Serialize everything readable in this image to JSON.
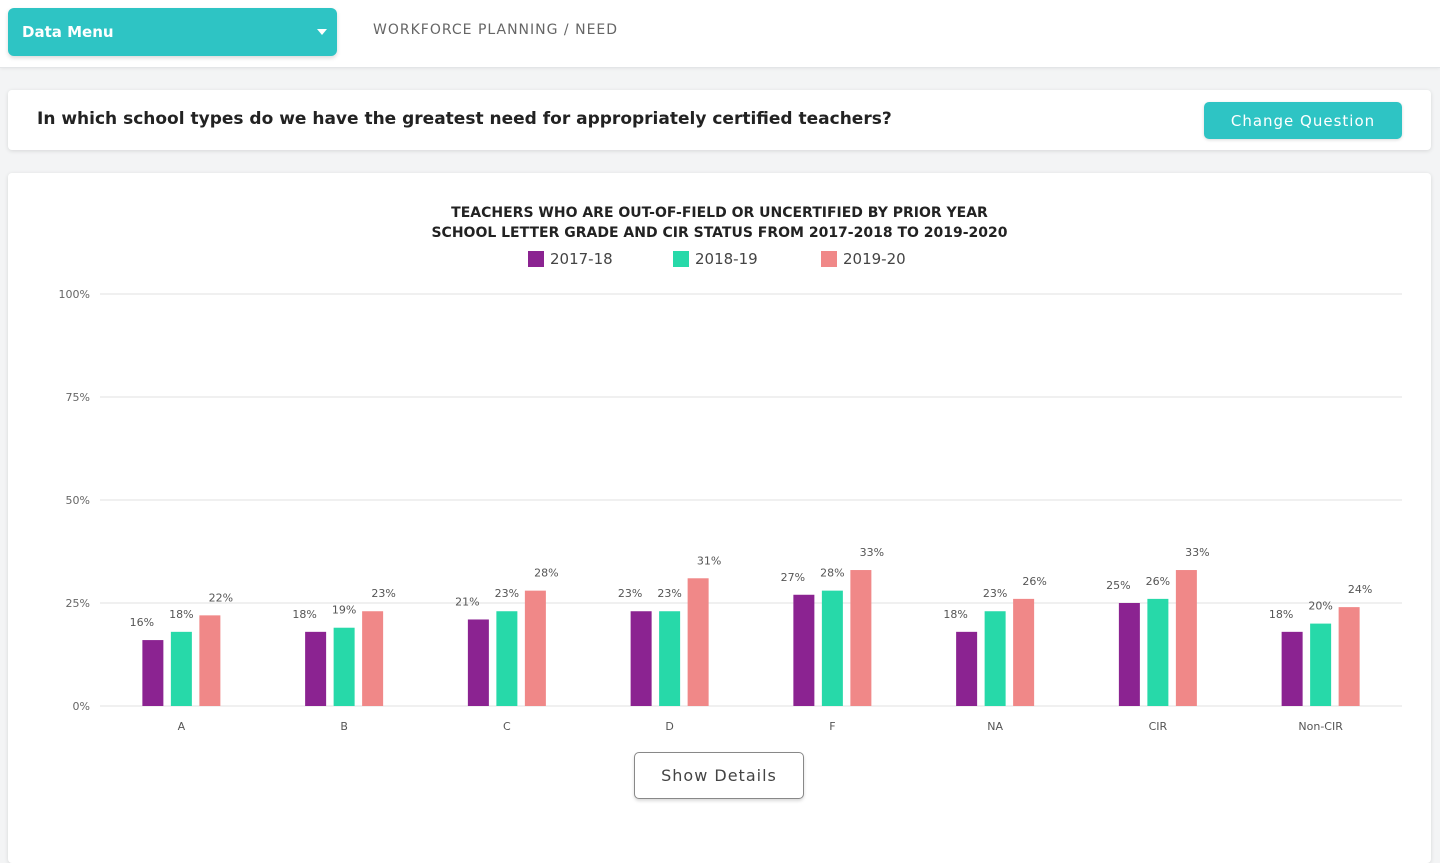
{
  "header": {
    "data_menu_label": "Data Menu",
    "breadcrumb": "WORKFORCE PLANNING / NEED"
  },
  "question": {
    "text": "In which school types do we have the greatest need for appropriately certified teachers?",
    "change_button_label": "Change Question"
  },
  "show_details_label": "Show Details",
  "chart_data": {
    "type": "bar",
    "title": "TEACHERS WHO ARE OUT-OF-FIELD OR UNCERTIFIED BY PRIOR YEAR",
    "subtitle": "SCHOOL LETTER GRADE AND CIR STATUS FROM 2017-2018 TO 2019-2020",
    "categories": [
      "A",
      "B",
      "C",
      "D",
      "F",
      "NA",
      "CIR",
      "Non-CIR"
    ],
    "series": [
      {
        "name": "2017-18",
        "color": "#8b2391",
        "values": [
          16,
          18,
          21,
          23,
          27,
          18,
          25,
          18
        ]
      },
      {
        "name": "2018-19",
        "color": "#27d9a9",
        "values": [
          18,
          19,
          23,
          23,
          28,
          23,
          26,
          20
        ]
      },
      {
        "name": "2019-20",
        "color": "#f08888",
        "values": [
          22,
          23,
          28,
          31,
          33,
          26,
          33,
          24
        ]
      }
    ],
    "ylim": [
      0,
      100
    ],
    "yticks": [
      0,
      25,
      50,
      75,
      100
    ],
    "ytick_labels": [
      "0%",
      "25%",
      "50%",
      "75%",
      "100%"
    ],
    "value_suffix": "%",
    "legend": "top-center",
    "grid": true
  }
}
